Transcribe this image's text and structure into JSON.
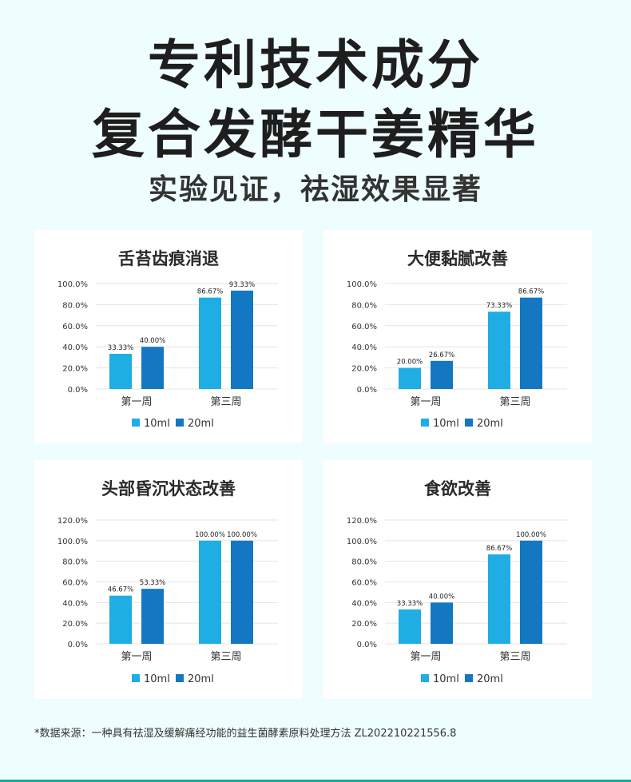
{
  "header": {
    "title_line1": "专利技术成分",
    "title_line2": "复合发酵干姜精华",
    "subtitle": "实验见证，祛湿效果显著"
  },
  "colors": {
    "series_10ml": "#1eaee3",
    "series_20ml": "#1477c2",
    "background": "#eefdfd"
  },
  "chart_data": [
    {
      "type": "bar",
      "title": "舌苔齿痕消退",
      "categories": [
        "第一周",
        "第三周"
      ],
      "ylim": [
        0,
        100
      ],
      "yticks": [
        "0.0%",
        "20.0%",
        "40.0%",
        "60.0%",
        "80.0%",
        "100.0%"
      ],
      "grid": true,
      "legend": "bottom",
      "series": [
        {
          "name": "10ml",
          "values": [
            33.33,
            86.67
          ],
          "labels": [
            "33.33%",
            "86.67%"
          ]
        },
        {
          "name": "20ml",
          "values": [
            40.0,
            93.33
          ],
          "labels": [
            "40.00%",
            "93.33%"
          ]
        }
      ]
    },
    {
      "type": "bar",
      "title": "大便黏腻改善",
      "categories": [
        "第一周",
        "第三周"
      ],
      "ylim": [
        0,
        100
      ],
      "yticks": [
        "0.0%",
        "20.0%",
        "40.0%",
        "60.0%",
        "80.0%",
        "100.0%"
      ],
      "grid": true,
      "legend": "bottom",
      "series": [
        {
          "name": "10ml",
          "values": [
            20.0,
            73.33
          ],
          "labels": [
            "20.00%",
            "73.33%"
          ]
        },
        {
          "name": "20ml",
          "values": [
            26.67,
            86.67
          ],
          "labels": [
            "26.67%",
            "86.67%"
          ]
        }
      ]
    },
    {
      "type": "bar",
      "title": "头部昏沉状态改善",
      "categories": [
        "第一周",
        "第三周"
      ],
      "ylim": [
        0,
        120
      ],
      "yticks": [
        "0.0%",
        "20.0%",
        "40.0%",
        "60.0%",
        "80.0%",
        "100.0%",
        "120.0%"
      ],
      "grid": true,
      "legend": "bottom",
      "series": [
        {
          "name": "10ml",
          "values": [
            46.67,
            100.0
          ],
          "labels": [
            "46.67%",
            "100.00%"
          ]
        },
        {
          "name": "20ml",
          "values": [
            53.33,
            100.0
          ],
          "labels": [
            "53.33%",
            "100.00%"
          ]
        }
      ]
    },
    {
      "type": "bar",
      "title": "食欲改善",
      "categories": [
        "第一周",
        "第三周"
      ],
      "ylim": [
        0,
        120
      ],
      "yticks": [
        "0.0%",
        "20.0%",
        "40.0%",
        "60.0%",
        "80.0%",
        "100.0%",
        "120.0%"
      ],
      "grid": true,
      "legend": "bottom",
      "series": [
        {
          "name": "10ml",
          "values": [
            33.33,
            86.67
          ],
          "labels": [
            "33.33%",
            "86.67%"
          ]
        },
        {
          "name": "20ml",
          "values": [
            40.0,
            100.0
          ],
          "labels": [
            "40.00%",
            "100.00%"
          ]
        }
      ]
    }
  ],
  "footnote": "*数据来源：一种具有祛湿及缓解痛经功能的益生菌酵素原料处理方法  ZL202210221556.8"
}
